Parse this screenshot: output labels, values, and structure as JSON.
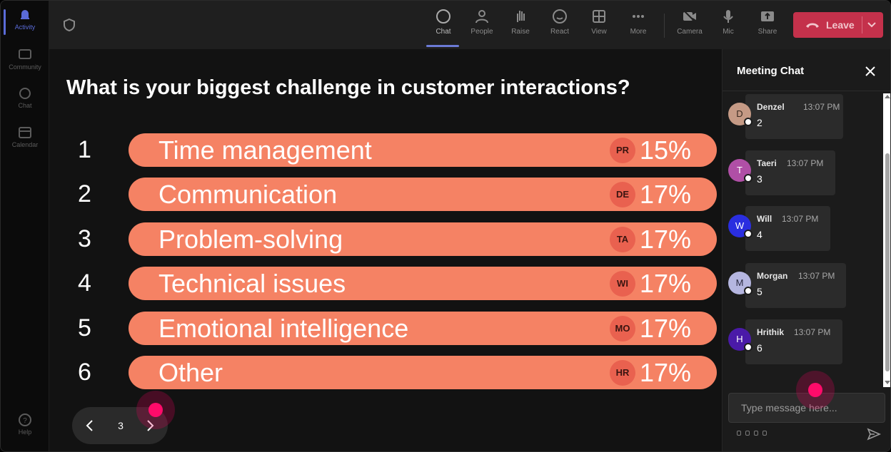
{
  "rail": {
    "items": [
      {
        "label": "Activity",
        "icon": "bell-icon",
        "active": true
      },
      {
        "label": "Community",
        "icon": "community-icon"
      },
      {
        "label": "Chat",
        "icon": "chat-icon"
      },
      {
        "label": "Calendar",
        "icon": "calendar-icon"
      }
    ],
    "help_label": "Help"
  },
  "topbar": {
    "items": [
      {
        "label": "Chat",
        "icon": "chat-icon"
      },
      {
        "label": "People",
        "icon": "people-icon"
      },
      {
        "label": "Raise",
        "icon": "hand-icon"
      },
      {
        "label": "React",
        "icon": "smiley-icon"
      },
      {
        "label": "View",
        "icon": "grid-icon"
      },
      {
        "label": "More",
        "icon": "more-icon"
      },
      {
        "label": "Camera",
        "icon": "camera-off-icon"
      },
      {
        "label": "Mic",
        "icon": "mic-icon"
      },
      {
        "label": "Share",
        "icon": "share-icon"
      }
    ],
    "leave_label": "Leave",
    "colors": {
      "leave": "#c4314b",
      "active_underline": "#6c7bd6"
    }
  },
  "poll": {
    "question": "What is your biggest challenge in customer interactions?",
    "options": [
      {
        "num": "1",
        "label": "Time management",
        "avatar": "PR",
        "percent": "15%"
      },
      {
        "num": "2",
        "label": "Communication",
        "avatar": "DE",
        "percent": "17%"
      },
      {
        "num": "3",
        "label": "Problem-solving",
        "avatar": "TA",
        "percent": "17%"
      },
      {
        "num": "4",
        "label": "Technical issues",
        "avatar": "WI",
        "percent": "17%"
      },
      {
        "num": "5",
        "label": "Emotional intelligence",
        "avatar": "MO",
        "percent": "17%"
      },
      {
        "num": "6",
        "label": "Other",
        "avatar": "HR",
        "percent": "17%"
      }
    ],
    "bar_color": "#f58264",
    "page": "3"
  },
  "chat": {
    "title": "Meeting Chat",
    "messages": [
      {
        "initial": "D",
        "name": "Denzel",
        "time": "13:07 PM",
        "text": "2",
        "color": "#c59a85"
      },
      {
        "initial": "T",
        "name": "Taeri",
        "time": "13:07 PM",
        "text": "3",
        "color": "#b04fa6"
      },
      {
        "initial": "W",
        "name": "Will",
        "time": "13:07 PM",
        "text": "4",
        "color": "#2a2ee0"
      },
      {
        "initial": "M",
        "name": "Morgan",
        "time": "13:07 PM",
        "text": "5",
        "color": "#b5b6e0"
      },
      {
        "initial": "H",
        "name": "Hrithik",
        "time": "13:07 PM",
        "text": "6",
        "color": "#4a1aa8"
      }
    ],
    "compose_placeholder": "Type message here..."
  }
}
